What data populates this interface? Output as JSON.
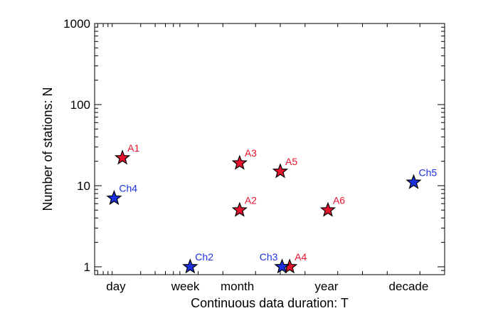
{
  "chart_data": {
    "type": "scatter",
    "xlabel": "Continuous data duration: T",
    "ylabel": "Number of stations: N",
    "yscale": "log",
    "ylim": [
      0.8,
      1000
    ],
    "xscale": "log",
    "xlim": [
      0.55,
      10000
    ],
    "yticks": [
      {
        "value": 1,
        "label": "1"
      },
      {
        "value": 10,
        "label": "10"
      },
      {
        "value": 100,
        "label": "100"
      },
      {
        "value": 1000,
        "label": "1000"
      }
    ],
    "xticks": [
      {
        "value": 1,
        "label": "day"
      },
      {
        "value": 7,
        "label": "week"
      },
      {
        "value": 30,
        "label": "month"
      },
      {
        "value": 365,
        "label": "year"
      },
      {
        "value": 3650,
        "label": "decade"
      }
    ],
    "marker": "star",
    "colors": {
      "A": "#e8122e",
      "Ch": "#1a2fe0"
    },
    "points": [
      {
        "label": "A1",
        "group": "A",
        "x": 1.2,
        "y": 22
      },
      {
        "label": "A2",
        "group": "A",
        "x": 32,
        "y": 5
      },
      {
        "label": "A3",
        "group": "A",
        "x": 32,
        "y": 19
      },
      {
        "label": "A4",
        "group": "A",
        "x": 130,
        "y": 1
      },
      {
        "label": "A5",
        "group": "A",
        "x": 100,
        "y": 15
      },
      {
        "label": "A6",
        "group": "A",
        "x": 380,
        "y": 5
      },
      {
        "label": "Ch2",
        "group": "Ch",
        "x": 8,
        "y": 1
      },
      {
        "label": "Ch3",
        "group": "Ch",
        "x": 105,
        "y": 1
      },
      {
        "label": "Ch4",
        "group": "Ch",
        "x": 0.95,
        "y": 7
      },
      {
        "label": "Ch5",
        "group": "Ch",
        "x": 4200,
        "y": 11
      }
    ]
  }
}
